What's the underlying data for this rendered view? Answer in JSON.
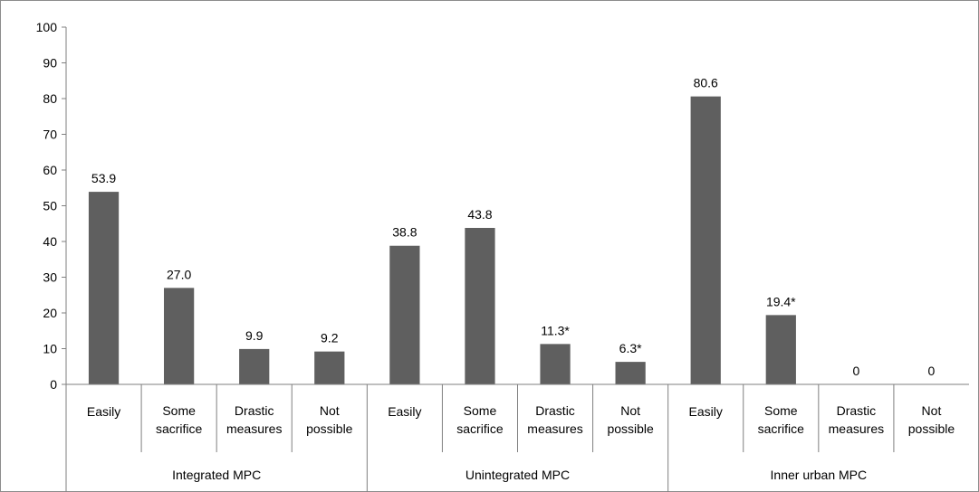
{
  "chart_data": {
    "type": "bar",
    "ylim": [
      0,
      100
    ],
    "yticks": [
      0,
      10,
      20,
      30,
      40,
      50,
      60,
      70,
      80,
      90,
      100
    ],
    "grid": false,
    "bar_color": "#5f5f5f",
    "groups": [
      {
        "name": "Integrated MPC",
        "bars": [
          {
            "label_lines": [
              "Easily"
            ],
            "value": 53.9,
            "display": "53.9"
          },
          {
            "label_lines": [
              "Some",
              "sacrifice"
            ],
            "value": 27.0,
            "display": "27.0"
          },
          {
            "label_lines": [
              "Drastic",
              "measures"
            ],
            "value": 9.9,
            "display": "9.9"
          },
          {
            "label_lines": [
              "Not",
              "possible"
            ],
            "value": 9.2,
            "display": "9.2"
          }
        ]
      },
      {
        "name": "Unintegrated MPC",
        "bars": [
          {
            "label_lines": [
              "Easily"
            ],
            "value": 38.8,
            "display": "38.8"
          },
          {
            "label_lines": [
              "Some",
              "sacrifice"
            ],
            "value": 43.8,
            "display": "43.8"
          },
          {
            "label_lines": [
              "Drastic",
              "measures"
            ],
            "value": 11.3,
            "display": "11.3*"
          },
          {
            "label_lines": [
              "Not",
              "possible"
            ],
            "value": 6.3,
            "display": "6.3*"
          }
        ]
      },
      {
        "name": "Inner urban MPC",
        "bars": [
          {
            "label_lines": [
              "Easily"
            ],
            "value": 80.6,
            "display": "80.6"
          },
          {
            "label_lines": [
              "Some",
              "sacrifice"
            ],
            "value": 19.4,
            "display": "19.4*"
          },
          {
            "label_lines": [
              "Drastic",
              "measures"
            ],
            "value": 0,
            "display": "0"
          },
          {
            "label_lines": [
              "Not",
              "possible"
            ],
            "value": 0,
            "display": "0"
          }
        ]
      }
    ]
  }
}
